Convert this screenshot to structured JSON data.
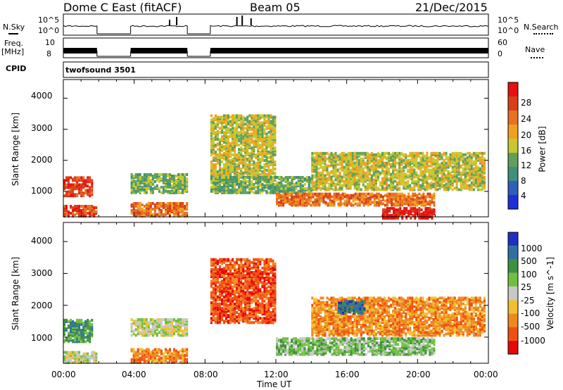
{
  "header": {
    "station": "Dome C East (fitACF)",
    "beam": "Beam 05",
    "date": "21/Dec/2015"
  },
  "strips": {
    "nsky_label": "N.Sky",
    "nsky_ticks": [
      "10^5",
      "10^0"
    ],
    "nsearch_label": "N.Search",
    "nsearch_ticks": [
      "10^5",
      "10^0"
    ],
    "freq_label_line1": "Freq.",
    "freq_label_line2": "[MHz]",
    "freq_ticks": [
      "10",
      "8"
    ],
    "nave_label": "Nave",
    "nave_ticks": [
      "60",
      "0"
    ],
    "cpid_label": "CPID",
    "cpid_value": "twofsound 3501"
  },
  "colors": {
    "power": [
      "#1f2fd8",
      "#2f5fb8",
      "#3f8f7a",
      "#5fa05a",
      "#c8c830",
      "#f0a020",
      "#e87020",
      "#d84018",
      "#e81010"
    ],
    "velocity": [
      "#e80808",
      "#f05010",
      "#f08820",
      "#f0c030",
      "#c8c8c8",
      "#70c040",
      "#3f9040",
      "#3070a0",
      "#2030c0"
    ],
    "ground_scatter": "#b4b4b4"
  },
  "chart_data": [
    {
      "type": "heatmap",
      "panel": "power",
      "xlabel": "",
      "ylabel": "Slant Range [km]",
      "y_ticks": [
        "1000",
        "2000",
        "3000",
        "4000"
      ],
      "ylim": [
        180,
        4600
      ],
      "xlim": [
        0,
        24
      ],
      "colorbar_label": "Power [dB]",
      "colorbar_ticks": [
        "4",
        "8",
        "12",
        "16",
        "20",
        "24",
        "28"
      ],
      "data_gaps_hours": [
        [
          1.9,
          3.8
        ],
        [
          7.0,
          8.3
        ]
      ],
      "echo_regions": [
        {
          "t": [
            0.0,
            1.9
          ],
          "range": [
            250,
            600
          ],
          "level": 7
        },
        {
          "t": [
            0.0,
            1.6
          ],
          "range": [
            900,
            1500
          ],
          "level": 7
        },
        {
          "t": [
            3.8,
            7.0
          ],
          "range": [
            250,
            700
          ],
          "level": 6
        },
        {
          "t": [
            3.8,
            7.0
          ],
          "range": [
            1000,
            1600
          ],
          "level": 3
        },
        {
          "t": [
            8.3,
            12.0
          ],
          "range": [
            1500,
            3500
          ],
          "level": 4
        },
        {
          "t": [
            8.3,
            14.0
          ],
          "range": [
            1000,
            1500
          ],
          "level": 3
        },
        {
          "t": [
            12.0,
            21.0
          ],
          "range": [
            600,
            1000
          ],
          "level": 6
        },
        {
          "t": [
            14.0,
            23.8
          ],
          "range": [
            1100,
            2300
          ],
          "level": 4
        },
        {
          "t": [
            18.0,
            21.0
          ],
          "range": [
            180,
            500
          ],
          "level": 8
        }
      ]
    },
    {
      "type": "heatmap",
      "panel": "velocity",
      "xlabel": "Time UT",
      "ylabel": "Slant Range [km]",
      "x_ticks": [
        "00:00",
        "04:00",
        "08:00",
        "12:00",
        "16:00",
        "20:00",
        "00:00"
      ],
      "y_ticks": [
        "1000",
        "2000",
        "3000",
        "4000"
      ],
      "ylim": [
        180,
        4600
      ],
      "xlim": [
        0,
        24
      ],
      "colorbar_label": "Velocity [m s^-1]",
      "colorbar_ticks": [
        "-1000",
        "-500",
        "-100",
        "-25",
        "25",
        "100",
        "500",
        "1000"
      ],
      "echo_regions": [
        {
          "t": [
            0.0,
            1.9
          ],
          "range": [
            250,
            600
          ],
          "level": 4
        },
        {
          "t": [
            0.0,
            1.6
          ],
          "range": [
            900,
            1600
          ],
          "level": 6
        },
        {
          "t": [
            3.8,
            7.0
          ],
          "range": [
            250,
            700
          ],
          "level": 2
        },
        {
          "t": [
            3.8,
            7.0
          ],
          "range": [
            1100,
            1600
          ],
          "level": 4
        },
        {
          "t": [
            8.3,
            12.0
          ],
          "range": [
            1500,
            3500
          ],
          "level": 1
        },
        {
          "t": [
            12.0,
            21.0
          ],
          "range": [
            500,
            1000
          ],
          "level": 5
        },
        {
          "t": [
            14.0,
            23.8
          ],
          "range": [
            1100,
            2300
          ],
          "level": 2
        },
        {
          "t": [
            15.5,
            17.0
          ],
          "range": [
            1800,
            2200
          ],
          "level": 7
        }
      ]
    }
  ]
}
